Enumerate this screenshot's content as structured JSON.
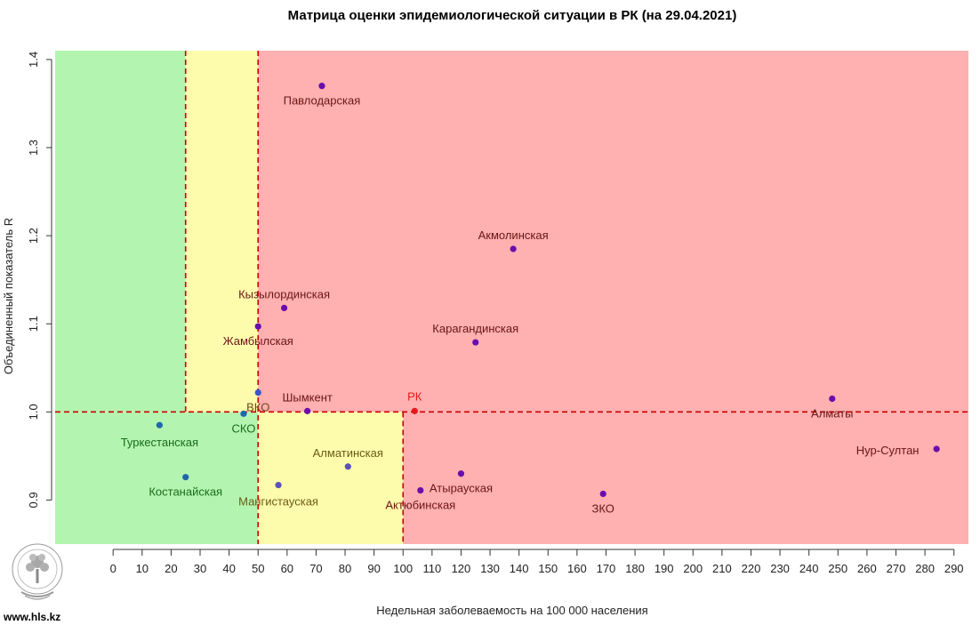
{
  "site": "www.hls.kz",
  "chart_data": {
    "type": "scatter",
    "title": "Матрица оценки эпидемиологической ситуации в РК (на 29.04.2021)",
    "xlabel": "Недельная заболеваемость на 100 000 населения",
    "ylabel": "Объединенный показатель R",
    "xlim": [
      -20,
      295
    ],
    "ylim": [
      0.85,
      1.41
    ],
    "xticks": [
      0,
      10,
      20,
      30,
      40,
      50,
      60,
      70,
      80,
      90,
      100,
      110,
      120,
      130,
      140,
      150,
      160,
      170,
      180,
      190,
      200,
      210,
      220,
      230,
      240,
      250,
      260,
      270,
      280,
      290
    ],
    "yticks": [
      0.9,
      1.0,
      1.1,
      1.2,
      1.3,
      1.4
    ],
    "zones": [
      {
        "x": [
          -20,
          25
        ],
        "y": [
          1.0,
          1.41
        ],
        "color": "#b3f5b0"
      },
      {
        "x": [
          25,
          50
        ],
        "y": [
          1.0,
          1.41
        ],
        "color": "#fdfcad"
      },
      {
        "x": [
          50,
          295
        ],
        "y": [
          1.0,
          1.41
        ],
        "color": "#ffb0b0"
      },
      {
        "x": [
          -20,
          50
        ],
        "y": [
          0.85,
          1.0
        ],
        "color": "#b3f5b0"
      },
      {
        "x": [
          50,
          100
        ],
        "y": [
          0.85,
          1.0
        ],
        "color": "#fdfcad"
      },
      {
        "x": [
          100,
          295
        ],
        "y": [
          0.85,
          1.0
        ],
        "color": "#ffb0b0"
      }
    ],
    "reference_lines": [
      {
        "orientation": "vertical",
        "x": 25,
        "y_from": 1.0,
        "y_to": 1.41
      },
      {
        "orientation": "vertical",
        "x": 50,
        "y_from": 0.85,
        "y_to": 1.41
      },
      {
        "orientation": "vertical",
        "x": 100,
        "y_from": 0.85,
        "y_to": 1.0
      },
      {
        "orientation": "horizontal",
        "y": 1.0,
        "x_from": -20,
        "x_to": 295
      }
    ],
    "points": [
      {
        "label": "Павлодарская",
        "x": 72,
        "y": 1.37,
        "color": "#6a0dad",
        "label_color": "#6b1515"
      },
      {
        "label": "Акмолинская",
        "x": 138,
        "y": 1.185,
        "color": "#6a0dad",
        "label_color": "#6b1515"
      },
      {
        "label": "Кызылординская",
        "x": 59,
        "y": 1.118,
        "color": "#6a0dad",
        "label_color": "#6b1515"
      },
      {
        "label": "Жамбылская",
        "x": 50,
        "y": 1.097,
        "color": "#6a0dad",
        "label_color": "#6b1515"
      },
      {
        "label": "Карагандинская",
        "x": 125,
        "y": 1.079,
        "color": "#6a0dad",
        "label_color": "#6b1515"
      },
      {
        "label": "ВКО",
        "x": 50,
        "y": 1.022,
        "color": "#3a55c8",
        "label_color": "#6b4a15"
      },
      {
        "label": "Шымкент",
        "x": 67,
        "y": 1.001,
        "color": "#6a0dad",
        "label_color": "#6b1515"
      },
      {
        "label": "РК",
        "x": 104,
        "y": 1.001,
        "color": "#e31a1c",
        "label_color": "#e31a1c"
      },
      {
        "label": "Алматы",
        "x": 248,
        "y": 1.015,
        "color": "#6a0dad",
        "label_color": "#6b1515"
      },
      {
        "label": "СКО",
        "x": 45,
        "y": 0.998,
        "color": "#2166ac",
        "label_color": "#1a6b1a"
      },
      {
        "label": "Туркестанская",
        "x": 16,
        "y": 0.985,
        "color": "#2166ac",
        "label_color": "#1a6b1a"
      },
      {
        "label": "Нур-Султан",
        "x": 284,
        "y": 0.958,
        "color": "#6a0dad",
        "label_color": "#6b1515"
      },
      {
        "label": "Алматинская",
        "x": 81,
        "y": 0.938,
        "color": "#5a52b8",
        "label_color": "#6b5a15"
      },
      {
        "label": "Костанайская",
        "x": 25,
        "y": 0.926,
        "color": "#2166ac",
        "label_color": "#1a6b1a"
      },
      {
        "label": "Мангистауская",
        "x": 57,
        "y": 0.917,
        "color": "#5a52b8",
        "label_color": "#6b5a15"
      },
      {
        "label": "Атырауская",
        "x": 120,
        "y": 0.93,
        "color": "#6a0dad",
        "label_color": "#6b1515"
      },
      {
        "label": "Актюбинская",
        "x": 106,
        "y": 0.911,
        "color": "#6a0dad",
        "label_color": "#6b1515"
      },
      {
        "label": "ЗКО",
        "x": 169,
        "y": 0.907,
        "color": "#6a0dad",
        "label_color": "#6b1515"
      }
    ],
    "line_color": "#cc0000",
    "grid": false,
    "legend": "none"
  }
}
